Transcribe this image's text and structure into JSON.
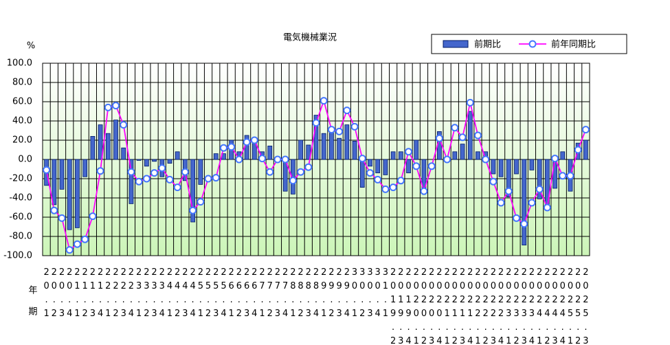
{
  "chart_data": {
    "type": "combo",
    "title": "電気機械業況",
    "y_unit": "%",
    "x_label_year": "年",
    "x_label_quarter": "期",
    "categories": [
      "20.1",
      "20.2",
      "20.3",
      "20.4",
      "21.1",
      "21.2",
      "21.3",
      "21.4",
      "22.1",
      "22.2",
      "22.3",
      "22.4",
      "23.1",
      "23.2",
      "23.3",
      "23.4",
      "24.1",
      "24.2",
      "24.3",
      "24.4",
      "25.1",
      "25.2",
      "25.3",
      "25.4",
      "26.1",
      "26.2",
      "26.3",
      "26.4",
      "27.1",
      "27.2",
      "27.3",
      "27.4",
      "28.1",
      "28.2",
      "28.3",
      "28.4",
      "29.1",
      "29.2",
      "29.3",
      "29.4",
      "30.1",
      "30.2",
      "30.3",
      "30.4",
      "31.1",
      "2019.2",
      "2019.3",
      "2019.4",
      "2020.1",
      "2020.2",
      "2020.3",
      "2020.4",
      "2021.1",
      "2021.2",
      "2021.3",
      "2021.4",
      "2022.1",
      "2022.2",
      "2022.3",
      "2022.4",
      "2023.1",
      "2023.2",
      "2023.3",
      "2023.4",
      "2024.1",
      "2024.2",
      "2024.3",
      "2024.4",
      "2025.1",
      "2025.2",
      "2025.3"
    ],
    "series": [
      {
        "name": "前期比",
        "type": "bar",
        "color": "#4466cc",
        "values": [
          -27,
          -47,
          -31,
          -73,
          -71,
          -18,
          24,
          36,
          27,
          41,
          12,
          -46,
          -1,
          -7,
          -2,
          -18,
          -4,
          8,
          -22,
          -65,
          -26,
          0,
          6,
          6,
          20,
          8,
          25,
          18,
          8,
          14,
          0,
          -33,
          -36,
          20,
          15,
          46,
          27,
          31,
          22,
          36,
          19,
          -29,
          -7,
          -14,
          -16,
          8,
          8,
          -14,
          20,
          -32,
          0,
          29,
          -1,
          8,
          16,
          50,
          8,
          8,
          -15,
          -18,
          -39,
          -15,
          -89,
          -11,
          -41,
          -48,
          -30,
          8,
          -33,
          17,
          20
        ]
      },
      {
        "name": "前年同期比",
        "type": "line",
        "color": "#ff00ff",
        "marker_color": "#4477ff",
        "values": [
          -11,
          -53,
          -61,
          -94,
          -88,
          -83,
          -59,
          -12,
          54,
          56,
          36,
          -13,
          -23,
          -20,
          -14,
          -9,
          -21,
          -29,
          -13,
          -53,
          -44,
          -20,
          -19,
          12,
          13,
          0,
          18,
          20,
          1,
          -13,
          0,
          0,
          -22,
          -13,
          -8,
          38,
          61,
          31,
          29,
          51,
          34,
          1,
          -14,
          -21,
          -31,
          -29,
          -22,
          8,
          -7,
          -33,
          -7,
          22,
          0,
          33,
          23,
          59,
          25,
          0,
          -23,
          -45,
          -33,
          -61,
          -67,
          -45,
          -31,
          -50,
          1,
          -17,
          -17,
          10,
          31
        ]
      }
    ],
    "ylim": [
      -100,
      100
    ],
    "yticks": [
      {
        "value": -100,
        "label": "-100.0"
      },
      {
        "value": -80,
        "label": "-80.0"
      },
      {
        "value": -60,
        "label": "-60.0"
      },
      {
        "value": -40,
        "label": "-40.0"
      },
      {
        "value": -20,
        "label": "-20.0"
      },
      {
        "value": 0,
        "label": "0.0"
      },
      {
        "value": 20,
        "label": "20.0"
      },
      {
        "value": 40,
        "label": "40.0"
      },
      {
        "value": 60,
        "label": "60.0"
      },
      {
        "value": 80,
        "label": "80.0"
      },
      {
        "value": 100,
        "label": "100.0"
      }
    ],
    "grid": true,
    "legend": "top-right",
    "background": [
      "#ffffff",
      "#ccf5b8"
    ]
  }
}
